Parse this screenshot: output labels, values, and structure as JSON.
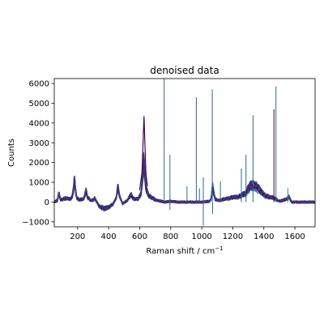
{
  "chart_data": {
    "type": "line",
    "title": "denoised data",
    "xlabel": "Raman shift / cm",
    "xlabel_superscript": "−1",
    "ylabel": "Counts",
    "xlim": [
      50,
      1730
    ],
    "ylim": [
      -1250,
      6250
    ],
    "xticks": [
      200,
      400,
      600,
      800,
      1000,
      1200,
      1400,
      1600
    ],
    "yticks": [
      -1000,
      0,
      1000,
      2000,
      3000,
      4000,
      5000,
      6000
    ],
    "grid": false,
    "legend": "none",
    "colors": {
      "dark": "#440154",
      "purple": "#482878",
      "blue": "#3e4a89",
      "teal": "#31688e",
      "cyan": "#26828e",
      "green": "#1f9e89",
      "axis": "#000000"
    },
    "baseline_points": [
      [
        50,
        0
      ],
      [
        70,
        100
      ],
      [
        80,
        600
      ],
      [
        90,
        150
      ],
      [
        110,
        200
      ],
      [
        130,
        250
      ],
      [
        150,
        200
      ],
      [
        165,
        300
      ],
      [
        175,
        900
      ],
      [
        180,
        1550
      ],
      [
        185,
        900
      ],
      [
        195,
        250
      ],
      [
        215,
        150
      ],
      [
        240,
        200
      ],
      [
        255,
        750
      ],
      [
        265,
        300
      ],
      [
        285,
        100
      ],
      [
        300,
        120
      ],
      [
        310,
        250
      ],
      [
        320,
        100
      ],
      [
        340,
        -300
      ],
      [
        370,
        -400
      ],
      [
        400,
        -350
      ],
      [
        430,
        -100
      ],
      [
        450,
        300
      ],
      [
        460,
        1000
      ],
      [
        470,
        400
      ],
      [
        490,
        -100
      ],
      [
        520,
        100
      ],
      [
        545,
        500
      ],
      [
        560,
        200
      ],
      [
        590,
        200
      ],
      [
        610,
        600
      ],
      [
        620,
        1800
      ],
      [
        625,
        2600
      ],
      [
        632,
        2000
      ],
      [
        640,
        900
      ],
      [
        660,
        400
      ],
      [
        700,
        150
      ],
      [
        760,
        0
      ],
      [
        800,
        50
      ],
      [
        850,
        0
      ],
      [
        900,
        0
      ],
      [
        950,
        0
      ],
      [
        1000,
        0
      ],
      [
        1050,
        50
      ],
      [
        1060,
        200
      ],
      [
        1070,
        1000
      ],
      [
        1075,
        700
      ],
      [
        1085,
        200
      ],
      [
        1110,
        100
      ],
      [
        1150,
        200
      ],
      [
        1200,
        300
      ],
      [
        1240,
        350
      ],
      [
        1280,
        550
      ],
      [
        1310,
        1000
      ],
      [
        1330,
        1100
      ],
      [
        1350,
        1000
      ],
      [
        1380,
        700
      ],
      [
        1410,
        400
      ],
      [
        1440,
        300
      ],
      [
        1460,
        300
      ],
      [
        1475,
        200
      ],
      [
        1500,
        50
      ],
      [
        1550,
        200
      ],
      [
        1560,
        350
      ],
      [
        1580,
        0
      ],
      [
        1620,
        0
      ],
      [
        1660,
        0
      ],
      [
        1700,
        0
      ],
      [
        1730,
        0
      ]
    ],
    "peak_curve": [
      [
        600,
        600
      ],
      [
        615,
        1500
      ],
      [
        622,
        3000
      ],
      [
        628,
        4350
      ],
      [
        633,
        3200
      ],
      [
        640,
        1500
      ],
      [
        650,
        800
      ]
    ],
    "spikes": [
      {
        "x": 758,
        "y": 6250,
        "series": "teal"
      },
      {
        "x": 795,
        "y": 2400,
        "series": "teal"
      },
      {
        "x": 905,
        "y": 800,
        "series": "teal"
      },
      {
        "x": 965,
        "y": 5300,
        "series": "teal"
      },
      {
        "x": 985,
        "y": 700,
        "series": "teal"
      },
      {
        "x": 1010,
        "y": 1250,
        "series": "teal"
      },
      {
        "x": 1068,
        "y": 5700,
        "series": "teal"
      },
      {
        "x": 1120,
        "y": 1050,
        "series": "teal"
      },
      {
        "x": 1255,
        "y": 1700,
        "series": "teal"
      },
      {
        "x": 1285,
        "y": 2400,
        "series": "teal"
      },
      {
        "x": 1330,
        "y": 4400,
        "series": "teal"
      },
      {
        "x": 1465,
        "y": 4700,
        "series": "dark"
      },
      {
        "x": 1478,
        "y": 5850,
        "series": "teal"
      },
      {
        "x": 1555,
        "y": 700,
        "series": "green"
      }
    ],
    "dips": [
      {
        "x": 1010,
        "y": -1200
      },
      {
        "x": 1070,
        "y": -600
      },
      {
        "x": 795,
        "y": -400
      }
    ],
    "series_count": 16
  }
}
